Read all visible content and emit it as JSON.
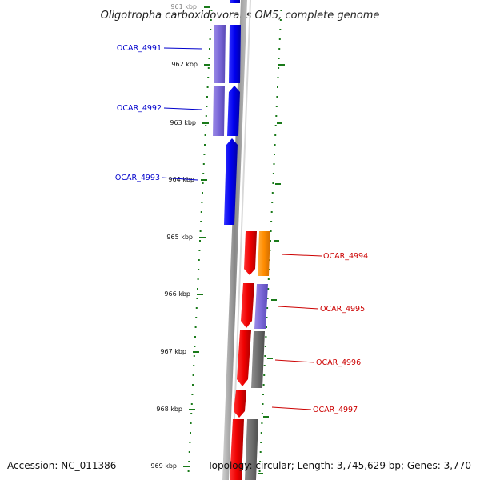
{
  "title": "Oligotropha carboxidovorans OM5, complete genome",
  "footer": {
    "accession": "Accession: NC_011386",
    "topology": "Topology: circular; Length: 3,745,629 bp; Genes: 3,770"
  },
  "ticks": [
    "961 kbp",
    "962 kbp",
    "963 kbp",
    "964 kbp",
    "965 kbp",
    "966 kbp",
    "967 kbp",
    "968 kbp",
    "969 kbp"
  ],
  "genes": [
    {
      "label": "OCAR_4991",
      "strand": "reverse",
      "color": "#0000ee",
      "label_color": "#0000cc"
    },
    {
      "label": "OCAR_4992",
      "strand": "reverse",
      "color": "#0000ee",
      "label_color": "#0000cc"
    },
    {
      "label": "OCAR_4993",
      "strand": "reverse",
      "color": "#0000ee",
      "label_color": "#0000cc"
    },
    {
      "label": "OCAR_4994",
      "strand": "forward",
      "color": "#ee0000",
      "label_color": "#cc0000"
    },
    {
      "label": "OCAR_4995",
      "strand": "forward",
      "color": "#ee0000",
      "label_color": "#cc0000"
    },
    {
      "label": "OCAR_4996",
      "strand": "forward",
      "color": "#ee0000",
      "label_color": "#cc0000"
    },
    {
      "label": "OCAR_4997",
      "strand": "forward",
      "color": "#ee0000",
      "label_color": "#cc0000"
    }
  ],
  "colors": {
    "backbone": "#888888",
    "tick": "#1a7a1a",
    "cog_purple": "#7b68d8",
    "cog_orange": "#ff8c00",
    "cog_gray": "#6e6e6e"
  }
}
